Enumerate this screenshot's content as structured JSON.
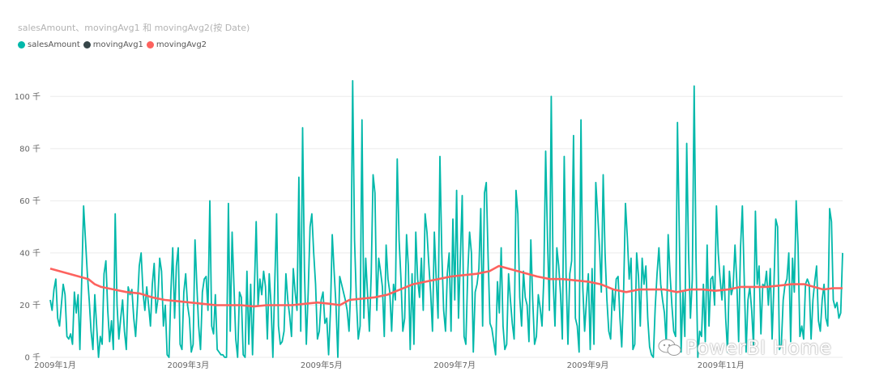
{
  "chart_data": {
    "type": "line",
    "title": "salesAmount、movingAvg1 和 movingAvg2(按 Date)",
    "y_unit": "千",
    "ylim": [
      0,
      110
    ],
    "y_ticks": [
      "0 千",
      "20 千",
      "40 千",
      "60 千",
      "80 千",
      "100 千"
    ],
    "y_tick_values": [
      0,
      20,
      40,
      60,
      80,
      100
    ],
    "x_ticks": [
      "2009年1月",
      "2009年3月",
      "2009年5月",
      "2009年7月",
      "2009年9月",
      "2009年11月"
    ],
    "x_tick_months": [
      0,
      2,
      4,
      6,
      8,
      10
    ],
    "x_range_months": [
      0,
      11.9
    ],
    "grid": true,
    "legend_position": "top-left",
    "series": [
      {
        "name": "salesAmount",
        "color": "#01B8AA",
        "x_start": "2009-01-01",
        "x_end": "2009-12-29",
        "values": [
          22,
          18,
          26,
          30,
          15,
          12,
          20,
          28,
          24,
          8,
          7,
          9,
          5,
          25,
          17,
          24,
          3,
          30,
          58,
          45,
          32,
          22,
          10,
          3,
          24,
          12,
          0,
          8,
          5,
          32,
          37,
          18,
          6,
          14,
          3,
          55,
          20,
          7,
          15,
          22,
          10,
          3,
          27,
          24,
          26,
          15,
          8,
          20,
          35,
          40,
          25,
          18,
          27,
          20,
          12,
          28,
          36,
          17,
          22,
          38,
          33,
          12,
          20,
          1,
          0,
          25,
          42,
          15,
          35,
          42,
          5,
          3,
          25,
          32,
          20,
          15,
          2,
          5,
          45,
          28,
          12,
          3,
          25,
          30,
          31,
          18,
          60,
          12,
          9,
          24,
          3,
          2,
          1,
          1,
          0,
          0,
          59,
          10,
          48,
          28,
          7,
          0,
          25,
          23,
          1,
          0,
          33,
          5,
          28,
          1,
          25,
          52,
          20,
          30,
          24,
          33,
          27,
          7,
          32,
          20,
          0,
          28,
          55,
          12,
          5,
          6,
          10,
          32,
          22,
          16,
          8,
          34,
          25,
          18,
          69,
          10,
          88,
          33,
          5,
          25,
          50,
          55,
          40,
          28,
          7,
          10,
          22,
          25,
          13,
          15,
          1,
          18,
          47,
          33,
          20,
          0,
          31,
          28,
          25,
          22,
          18,
          10,
          27,
          106,
          45,
          22,
          7,
          12,
          91,
          15,
          38,
          24,
          10,
          32,
          70,
          63,
          18,
          38,
          33,
          27,
          8,
          43,
          30,
          25,
          10,
          28,
          22,
          76,
          45,
          30,
          10,
          15,
          47,
          35,
          3,
          32,
          5,
          48,
          30,
          23,
          38,
          18,
          55,
          48,
          36,
          25,
          10,
          48,
          30,
          15,
          77,
          40,
          18,
          10,
          32,
          40,
          10,
          53,
          22,
          64,
          15,
          38,
          62,
          8,
          5,
          32,
          48,
          40,
          2,
          25,
          28,
          34,
          57,
          12,
          63,
          67,
          38,
          13,
          11,
          6,
          1,
          29,
          17,
          42,
          12,
          3,
          5,
          32,
          22,
          13,
          7,
          64,
          55,
          23,
          12,
          33,
          23,
          20,
          6,
          45,
          22,
          5,
          8,
          24,
          19,
          12,
          30,
          79,
          45,
          18,
          100,
          30,
          12,
          42,
          35,
          24,
          7,
          77,
          32,
          5,
          32,
          37,
          85,
          15,
          12,
          2,
          91,
          27,
          10,
          22,
          32,
          3,
          34,
          5,
          67,
          55,
          42,
          25,
          70,
          40,
          22,
          10,
          7,
          26,
          18,
          30,
          31,
          15,
          4,
          25,
          59,
          46,
          30,
          38,
          3,
          5,
          40,
          31,
          12,
          38,
          28,
          35,
          15,
          4,
          1,
          0,
          19,
          32,
          42,
          28,
          22,
          17,
          5,
          47,
          32,
          20,
          10,
          8,
          90,
          48,
          2,
          25,
          8,
          82,
          40,
          15,
          30,
          104,
          38,
          0,
          10,
          8,
          28,
          6,
          43,
          12,
          30,
          31,
          20,
          58,
          40,
          30,
          22,
          35,
          15,
          2,
          33,
          24,
          27,
          43,
          29,
          6,
          42,
          58,
          30,
          2,
          22,
          27,
          18,
          4,
          56,
          28,
          35,
          9,
          28,
          27,
          33,
          20,
          34,
          7,
          28,
          53,
          50,
          3,
          5,
          22,
          28,
          30,
          40,
          6,
          38,
          25,
          60,
          43,
          8,
          12,
          7,
          28,
          30,
          28,
          7,
          22,
          29,
          35,
          14,
          10,
          22,
          28,
          15,
          12,
          57,
          52,
          22,
          19,
          21,
          15,
          17,
          40
        ]
      },
      {
        "name": "movingAvg1",
        "color": "#374649",
        "values": []
      },
      {
        "name": "movingAvg2",
        "color": "#FD625E",
        "anchors": [
          [
            0,
            34
          ],
          [
            6,
            33
          ],
          [
            12,
            32
          ],
          [
            18,
            31
          ],
          [
            24,
            30
          ],
          [
            28,
            28
          ],
          [
            32,
            27
          ],
          [
            40,
            26
          ],
          [
            48,
            25
          ],
          [
            56,
            24.5
          ],
          [
            64,
            23
          ],
          [
            72,
            22
          ],
          [
            80,
            21.5
          ],
          [
            88,
            21
          ],
          [
            96,
            20.5
          ],
          [
            104,
            20
          ],
          [
            112,
            20
          ],
          [
            120,
            20
          ],
          [
            128,
            19.5
          ],
          [
            136,
            20
          ],
          [
            144,
            20
          ],
          [
            152,
            20
          ],
          [
            160,
            20.5
          ],
          [
            168,
            21
          ],
          [
            176,
            20.5
          ],
          [
            182,
            20
          ],
          [
            188,
            22
          ],
          [
            196,
            22.5
          ],
          [
            204,
            23
          ],
          [
            212,
            24
          ],
          [
            220,
            26
          ],
          [
            228,
            28
          ],
          [
            236,
            29
          ],
          [
            244,
            30
          ],
          [
            252,
            31
          ],
          [
            260,
            31.5
          ],
          [
            268,
            32
          ],
          [
            276,
            33
          ],
          [
            282,
            35
          ],
          [
            288,
            34
          ],
          [
            294,
            33
          ],
          [
            300,
            32
          ],
          [
            306,
            31
          ],
          [
            314,
            30
          ],
          [
            322,
            30
          ],
          [
            330,
            29.5
          ],
          [
            338,
            29
          ],
          [
            346,
            28
          ],
          [
            354,
            26
          ],
          [
            362,
            25
          ],
          [
            370,
            26
          ],
          [
            378,
            26
          ],
          [
            386,
            26
          ],
          [
            394,
            25
          ],
          [
            402,
            26
          ],
          [
            410,
            26
          ],
          [
            418,
            25.5
          ],
          [
            426,
            26
          ],
          [
            434,
            27
          ],
          [
            442,
            27
          ],
          [
            450,
            27
          ],
          [
            458,
            27.5
          ],
          [
            466,
            28
          ],
          [
            474,
            28
          ],
          [
            480,
            27
          ],
          [
            486,
            26
          ],
          [
            492,
            26.5
          ],
          [
            498,
            26.5
          ]
        ]
      }
    ]
  },
  "watermark": {
    "text": "PowerBI Home"
  }
}
